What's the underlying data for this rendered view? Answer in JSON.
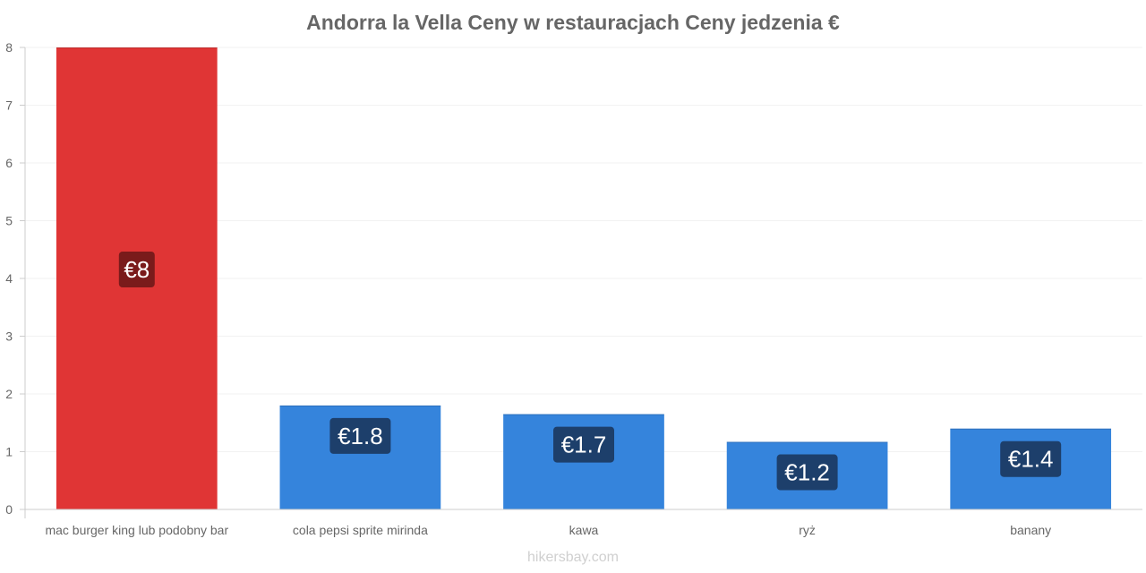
{
  "chart_data": {
    "type": "bar",
    "title": "Andorra la Vella Ceny w restauracjach Ceny jedzenia €",
    "xlabel": "",
    "ylabel": "",
    "ylim": [
      0,
      8
    ],
    "yticks": [
      "0",
      "1",
      "2",
      "3",
      "4",
      "5",
      "6",
      "7",
      "8"
    ],
    "grid": true,
    "categories": [
      "mac burger king lub podobny bar",
      "cola pepsi sprite mirinda",
      "kawa",
      "ryż",
      "banany"
    ],
    "values": [
      8,
      1.8,
      1.65,
      1.17,
      1.4
    ],
    "data_labels": [
      "€8",
      "€1.8",
      "€1.7",
      "€1.2",
      "€1.4"
    ],
    "bar_colors": [
      "#e03535",
      "#3584dc",
      "#3584dc",
      "#3584dc",
      "#3584dc"
    ],
    "label_box_colors": [
      "#7a1b1b",
      "#1d3f6b",
      "#1d3f6b",
      "#1d3f6b",
      "#1d3f6b"
    ]
  },
  "footer": "hikersbay.com"
}
